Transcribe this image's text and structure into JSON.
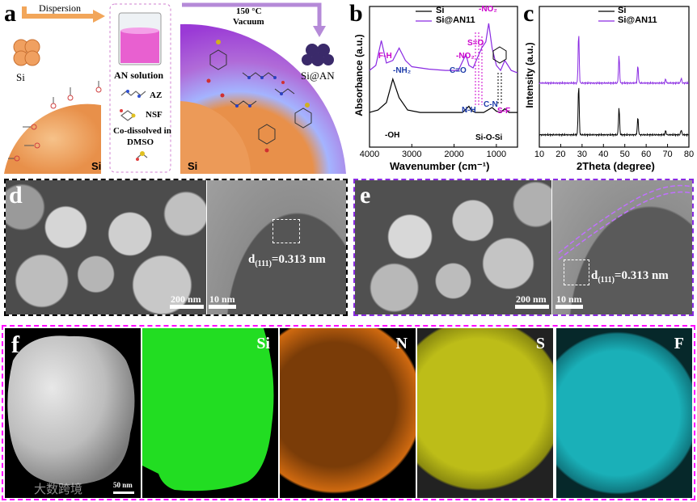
{
  "panels": {
    "a": {
      "label": "a",
      "arrow1": "Dispersion",
      "si_particle": "Si",
      "beaker_label": "AN solution",
      "az": "AZ",
      "nsf": "NSF",
      "codissolved_1": "Co-dissolved in",
      "codissolved_2": "DMSO",
      "arrow2_line1": "150 °C",
      "arrow2_line2": "Vacuum",
      "product": "Si@AN",
      "si_left": "Si",
      "si_right": "Si"
    },
    "b": {
      "label": "b",
      "legend": [
        "Si",
        "Si@AN11"
      ],
      "xlabel": "Wavenumber (cm⁻¹)",
      "ylabel": "Absorbance (a.u.)",
      "xticks": [
        "4000",
        "3000",
        "2000",
        "1000"
      ],
      "annotations": {
        "fh": "F-H",
        "nh2": "-NH₂",
        "co": "C=O",
        "no2a": "-NO₂",
        "so": "S=O",
        "no2b": "-NO₂",
        "nh": "N-H",
        "cn": "C-N",
        "sf": "S-F",
        "oh": "-OH",
        "siosi": "Si-O-Si"
      }
    },
    "c": {
      "label": "c",
      "legend": [
        "Si",
        "Si@AN11"
      ],
      "xlabel": "2Theta (degree)",
      "ylabel": "Intensity (a.u.)",
      "xticks": [
        "10",
        "20",
        "30",
        "40",
        "50",
        "60",
        "70",
        "80"
      ]
    },
    "d": {
      "label": "d",
      "scalebar_sem": "200 nm",
      "scalebar_tem": "10 nm",
      "lattice_main": "d",
      "lattice_sub": "(111)",
      "lattice_val": "=0.313 nm"
    },
    "e": {
      "label": "e",
      "scalebar_sem": "200 nm",
      "scalebar_tem": "10 nm",
      "lattice_main": "d",
      "lattice_sub": "(111)",
      "lattice_val": "=0.313 nm"
    },
    "f": {
      "label": "f",
      "scalebar": "50 nm",
      "elements": [
        "Si",
        "N",
        "S",
        "F"
      ],
      "watermark": "大数跨境"
    }
  },
  "colors": {
    "si_trace": "#000000",
    "sian_trace": "#8a2be2",
    "annotation": "#1e3caa",
    "annotation_magenta": "#cc00cc",
    "panel_d_border": "#000000",
    "panel_e_border": "#8a2be2",
    "panel_f_border": "#ff00ff",
    "eds_si": "#22dd22",
    "eds_n": "#e07a10",
    "eds_s": "#d8d820",
    "eds_f": "#20c0c8"
  },
  "chart_data": [
    {
      "type": "line",
      "panel": "b",
      "xlabel": "Wavenumber (cm⁻¹)",
      "ylabel": "Absorbance (a.u.)",
      "xlim": [
        4000,
        500
      ],
      "x_reversed": true,
      "legend_position": "top-right",
      "series": [
        {
          "name": "Si",
          "x": [
            4000,
            3800,
            3600,
            3450,
            3300,
            3100,
            2800,
            2400,
            2000,
            1800,
            1650,
            1600,
            1500,
            1300,
            1100,
            1000,
            900,
            800,
            700,
            500
          ],
          "y": [
            0.28,
            0.3,
            0.36,
            0.55,
            0.4,
            0.3,
            0.28,
            0.28,
            0.28,
            0.28,
            0.33,
            0.3,
            0.28,
            0.28,
            0.32,
            0.29,
            0.28,
            0.31,
            0.28,
            0.28
          ]
        },
        {
          "name": "Si@AN11",
          "x": [
            4000,
            3850,
            3720,
            3600,
            3450,
            3300,
            3150,
            3000,
            2600,
            2200,
            1900,
            1720,
            1650,
            1550,
            1450,
            1350,
            1250,
            1180,
            1100,
            1000,
            900,
            800,
            650,
            500
          ],
          "y": [
            0.62,
            0.66,
            0.86,
            0.68,
            0.7,
            0.8,
            0.7,
            0.65,
            0.63,
            0.62,
            0.62,
            0.75,
            0.66,
            0.64,
            0.72,
            0.8,
            0.85,
            1.0,
            0.8,
            0.66,
            0.62,
            0.7,
            0.62,
            0.6
          ]
        }
      ]
    },
    {
      "type": "line",
      "panel": "c",
      "xlabel": "2Theta (degree)",
      "ylabel": "Intensity (a.u.)",
      "xlim": [
        10,
        80
      ],
      "legend_position": "top-right",
      "series": [
        {
          "name": "Si",
          "peaks": [
            [
              28.4,
              1.0
            ],
            [
              47.3,
              0.55
            ],
            [
              56.1,
              0.35
            ],
            [
              69.1,
              0.08
            ],
            [
              76.4,
              0.1
            ]
          ],
          "baseline": 0.0
        },
        {
          "name": "Si@AN11",
          "peaks": [
            [
              28.4,
              1.0
            ],
            [
              47.3,
              0.55
            ],
            [
              56.1,
              0.35
            ],
            [
              69.1,
              0.08
            ],
            [
              76.4,
              0.1
            ]
          ],
          "baseline": 1.0
        }
      ]
    }
  ]
}
